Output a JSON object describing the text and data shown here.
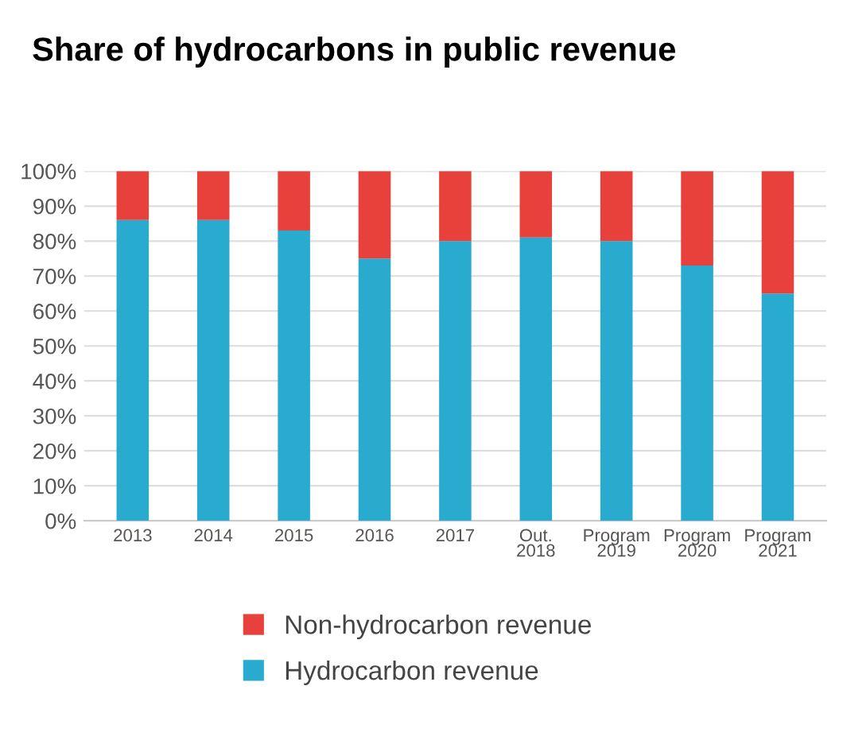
{
  "chart_data": {
    "type": "bar",
    "title": "Share of hydrocarbons in public revenue",
    "stacked": true,
    "categories": [
      "2013",
      "2014",
      "2015",
      "2016",
      "2017",
      "Out.\n2018",
      "Program\n2019",
      "Program\n2020",
      "Program\n2021"
    ],
    "series": [
      {
        "name": "Hydrocarbon revenue",
        "color": "#29abd0",
        "values": [
          86,
          86,
          83,
          75,
          80,
          81,
          80,
          73,
          65
        ]
      },
      {
        "name": "Non-hydrocarbon revenue",
        "color": "#e8403a",
        "values": [
          14,
          14,
          17,
          25,
          20,
          19,
          20,
          27,
          35
        ]
      }
    ],
    "ylim": [
      0,
      100
    ],
    "yticks": [
      {
        "value": 0,
        "label": "0%"
      },
      {
        "value": 10,
        "label": "10%"
      },
      {
        "value": 20,
        "label": "20%"
      },
      {
        "value": 30,
        "label": "30%"
      },
      {
        "value": 40,
        "label": "40%"
      },
      {
        "value": 50,
        "label": "50%"
      },
      {
        "value": 60,
        "label": "60%"
      },
      {
        "value": 70,
        "label": "70%"
      },
      {
        "value": 80,
        "label": "80%"
      },
      {
        "value": 90,
        "label": "90%"
      },
      {
        "value": 100,
        "label": "100%"
      }
    ],
    "grid": "y",
    "legend": "bottom"
  }
}
